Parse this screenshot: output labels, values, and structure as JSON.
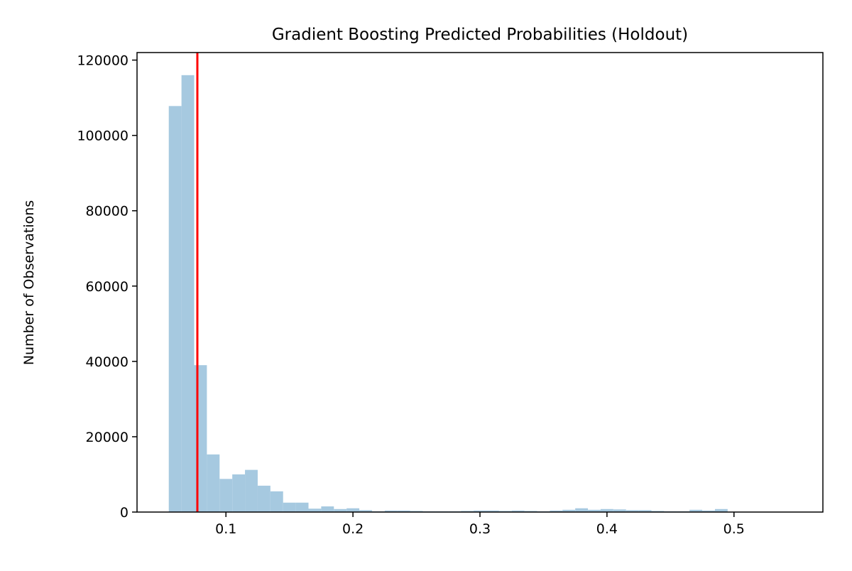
{
  "chart_data": {
    "type": "bar",
    "title": "Gradient Boosting Predicted Probabilities (Holdout)",
    "xlabel": "",
    "ylabel": "Number of Observations",
    "xlim": [
      0.03,
      0.57
    ],
    "ylim": [
      0,
      122000
    ],
    "x_ticks": [
      0.1,
      0.2,
      0.3,
      0.4,
      0.5
    ],
    "x_tick_labels": [
      "0.1",
      "0.2",
      "0.3",
      "0.4",
      "0.5"
    ],
    "y_ticks": [
      0,
      20000,
      40000,
      60000,
      80000,
      100000,
      120000
    ],
    "y_tick_labels": [
      "0",
      "20000",
      "40000",
      "60000",
      "80000",
      "100000",
      "120000"
    ],
    "grid": false,
    "bar_color": "#a6c9e0",
    "bin_start": 0.055,
    "bin_width": 0.01,
    "values": [
      107800,
      116000,
      39000,
      15300,
      8800,
      10000,
      11200,
      7000,
      5500,
      2500,
      2500,
      900,
      1500,
      800,
      1000,
      500,
      200,
      400,
      400,
      300,
      200,
      200,
      200,
      300,
      400,
      400,
      300,
      400,
      300,
      200,
      400,
      600,
      1000,
      600,
      800,
      700,
      500,
      500,
      300,
      200,
      200,
      600,
      400,
      800
    ],
    "reference_line": {
      "x": 0.0775,
      "color": "#ff0000"
    }
  }
}
